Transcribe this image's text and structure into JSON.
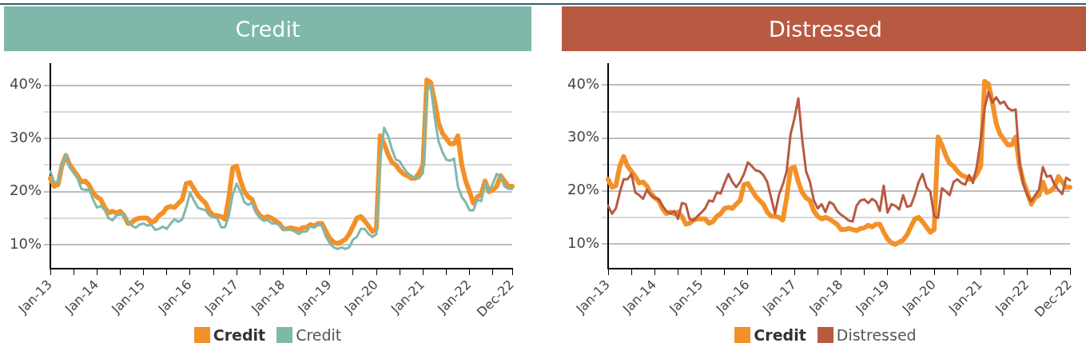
{
  "chart_data": [
    {
      "type": "line",
      "title": "Credit",
      "categories": [
        "Jan-13",
        null,
        null,
        null,
        null,
        null,
        null,
        null,
        null,
        null,
        null,
        null,
        "Jan-14",
        null,
        null,
        null,
        null,
        null,
        null,
        null,
        null,
        null,
        null,
        null,
        "Jan-15",
        null,
        null,
        null,
        null,
        null,
        null,
        null,
        null,
        null,
        null,
        null,
        "Jan-16",
        null,
        null,
        null,
        null,
        null,
        null,
        null,
        null,
        null,
        null,
        null,
        "Jan-17",
        null,
        null,
        null,
        null,
        null,
        null,
        null,
        null,
        null,
        null,
        null,
        "Jan-18",
        null,
        null,
        null,
        null,
        null,
        null,
        null,
        null,
        null,
        null,
        null,
        "Jan-19",
        null,
        null,
        null,
        null,
        null,
        null,
        null,
        null,
        null,
        null,
        null,
        "Jan-20",
        null,
        null,
        null,
        null,
        null,
        null,
        null,
        null,
        null,
        null,
        null,
        "Jan-21",
        null,
        null,
        null,
        null,
        null,
        null,
        null,
        null,
        null,
        null,
        null,
        "Jan-22",
        null,
        null,
        null,
        null,
        null,
        null,
        null,
        null,
        null,
        null,
        "Dec-22"
      ],
      "series": [
        {
          "name": "Credit",
          "color": "#f39128",
          "values": [
            22.5,
            21,
            21.3,
            25,
            26.8,
            25,
            24,
            23,
            21.8,
            22,
            21.2,
            19.8,
            19,
            18.5,
            17,
            16,
            16.3,
            16,
            16.3,
            15.5,
            14,
            14.2,
            14.8,
            15,
            15,
            15,
            14.2,
            14.5,
            15.5,
            16,
            17,
            17.2,
            17,
            17.8,
            18.5,
            21.5,
            21.7,
            20.5,
            19.3,
            18.5,
            17.8,
            16.3,
            15.5,
            15.5,
            15.3,
            14.8,
            19,
            24.5,
            24.8,
            22,
            20,
            19,
            18.5,
            16.5,
            15.5,
            15,
            15.3,
            15,
            14.5,
            14,
            13,
            13,
            13.2,
            13,
            12.8,
            13.2,
            13.3,
            13.8,
            13.5,
            14,
            14,
            12.5,
            11.2,
            10.5,
            10.2,
            10.6,
            11,
            12,
            13.5,
            15,
            15.3,
            14.5,
            13.5,
            12.5,
            13,
            30.5,
            29,
            27,
            25.5,
            25,
            24,
            23.3,
            23,
            22.5,
            22.5,
            23.5,
            25,
            41,
            40.5,
            37,
            33,
            31,
            30,
            29,
            29,
            30.5,
            25,
            22,
            20,
            17.8,
            19,
            19.5,
            22,
            20,
            20.3,
            21,
            23,
            22,
            21,
            21
          ]
        },
        {
          "name": "Credit",
          "color": "#7fb8ab",
          "values": [
            23.8,
            21.8,
            21.8,
            25,
            27,
            24.5,
            23.5,
            22.5,
            20.5,
            20.3,
            20.5,
            18.5,
            17,
            17.3,
            16.5,
            15,
            14.6,
            15.5,
            15.7,
            15.8,
            14.3,
            13.6,
            13.2,
            13.8,
            14,
            13.6,
            13.8,
            12.8,
            13,
            13.4,
            13,
            14,
            14.8,
            14.3,
            14.8,
            17,
            19.8,
            18.3,
            17,
            16.7,
            16.5,
            15.5,
            15.2,
            15,
            13.3,
            13.3,
            15.5,
            19.5,
            21.5,
            20,
            18,
            17.5,
            18,
            16,
            15,
            14.5,
            14.7,
            14,
            14,
            13.8,
            12.8,
            12.8,
            12.8,
            12.5,
            12,
            12.5,
            12.5,
            13.5,
            13.2,
            13.8,
            13.5,
            11.5,
            10.3,
            9.5,
            9.2,
            9.5,
            9.2,
            9.5,
            11,
            11.5,
            13,
            13,
            12,
            11.5,
            12,
            26,
            32,
            30.5,
            28,
            26,
            25.7,
            24.5,
            23.5,
            23,
            22.5,
            22.5,
            23.5,
            39,
            40,
            34,
            29.5,
            27.5,
            26,
            25.8,
            26.2,
            21,
            19,
            18,
            16.5,
            16.5,
            18.5,
            18.2,
            21.5,
            20,
            21.5,
            23.3,
            22.8,
            21,
            20.5,
            20.5
          ]
        }
      ],
      "ylim": [
        5.5,
        44
      ],
      "yticks": [
        {
          "value": 10,
          "label": "10%"
        },
        {
          "value": 15,
          "label": null
        },
        {
          "value": 20,
          "label": "20%"
        },
        {
          "value": 25,
          "label": null
        },
        {
          "value": 30,
          "label": "30%"
        },
        {
          "value": 35,
          "label": null
        },
        {
          "value": 40,
          "label": "40%"
        }
      ],
      "grid": "y",
      "legend": "bottom",
      "marker": "none",
      "line_style": "solid"
    },
    {
      "type": "line",
      "title": "Distressed",
      "categories": [
        "Jan-13",
        null,
        null,
        null,
        null,
        null,
        null,
        null,
        null,
        null,
        null,
        null,
        "Jan-14",
        null,
        null,
        null,
        null,
        null,
        null,
        null,
        null,
        null,
        null,
        null,
        "Jan-15",
        null,
        null,
        null,
        null,
        null,
        null,
        null,
        null,
        null,
        null,
        null,
        "Jan-16",
        null,
        null,
        null,
        null,
        null,
        null,
        null,
        null,
        null,
        null,
        null,
        "Jan-17",
        null,
        null,
        null,
        null,
        null,
        null,
        null,
        null,
        null,
        null,
        null,
        "Jan-18",
        null,
        null,
        null,
        null,
        null,
        null,
        null,
        null,
        null,
        null,
        null,
        "Jan-19",
        null,
        null,
        null,
        null,
        null,
        null,
        null,
        null,
        null,
        null,
        null,
        "Jan-20",
        null,
        null,
        null,
        null,
        null,
        null,
        null,
        null,
        null,
        null,
        null,
        "Jan-21",
        null,
        null,
        null,
        null,
        null,
        null,
        null,
        null,
        null,
        null,
        null,
        "Jan-22",
        null,
        null,
        null,
        null,
        null,
        null,
        null,
        null,
        null,
        null,
        "Dec-22"
      ],
      "series": [
        {
          "name": "Credit",
          "color": "#f39128",
          "values": [
            22.2,
            20.7,
            21,
            24.7,
            26.5,
            24.7,
            23.7,
            22.7,
            21.5,
            21.7,
            20.9,
            19.5,
            18.7,
            18.2,
            16.7,
            15.7,
            16,
            15.7,
            16,
            15.2,
            13.7,
            13.9,
            14.5,
            14.7,
            14.7,
            14.7,
            13.9,
            14.2,
            15.2,
            15.7,
            16.7,
            16.9,
            16.7,
            17.5,
            18.2,
            21.2,
            21.4,
            20.2,
            19,
            18.2,
            17.5,
            16,
            15.2,
            15.2,
            15,
            14.5,
            18.7,
            24.2,
            24.5,
            21.7,
            19.7,
            18.7,
            18.2,
            16.2,
            15.2,
            14.7,
            15,
            14.7,
            14.2,
            13.7,
            12.7,
            12.7,
            12.9,
            12.7,
            12.5,
            12.9,
            13,
            13.5,
            13.2,
            13.7,
            13.7,
            12.2,
            10.9,
            10.2,
            9.9,
            10.3,
            10.7,
            11.7,
            13.2,
            14.7,
            15,
            14.2,
            13.2,
            12.2,
            12.7,
            30.2,
            28.7,
            26.7,
            25.2,
            24.7,
            23.7,
            23,
            22.7,
            22.2,
            22.2,
            23.2,
            24.7,
            40.7,
            40.2,
            36.7,
            32.7,
            30.7,
            29.7,
            28.7,
            28.7,
            30.2,
            24.7,
            21.7,
            19.7,
            17.5,
            18.7,
            19.2,
            21.7,
            19.7,
            20,
            20.7,
            22.7,
            21.7,
            20.7,
            20.7
          ]
        },
        {
          "name": "Distressed",
          "color": "#b85a42",
          "values": [
            17.2,
            15.7,
            16.7,
            19.7,
            22.2,
            22.2,
            23.2,
            19.7,
            19.2,
            18.5,
            20.2,
            19.2,
            18.7,
            18.4,
            17.2,
            16.2,
            15.7,
            16.2,
            14.7,
            17.7,
            17.5,
            14.7,
            14.4,
            15.2,
            15.9,
            16.7,
            18.2,
            18,
            19.7,
            19.5,
            21.5,
            23.2,
            21.7,
            20.7,
            21.7,
            23.2,
            25.4,
            24.7,
            23.9,
            23.7,
            23,
            21.7,
            18.7,
            15.7,
            19.2,
            21.2,
            23.7,
            30.7,
            33.7,
            37.5,
            29.7,
            23.7,
            21.7,
            18.2,
            16.7,
            17.5,
            16,
            17.9,
            17.5,
            16.2,
            15.5,
            15,
            14.4,
            14.2,
            17.2,
            18.2,
            18.4,
            17.7,
            18.5,
            18,
            16.2,
            21,
            15.9,
            17.5,
            17.2,
            16.5,
            19.2,
            17,
            17.2,
            19.2,
            21.7,
            23.2,
            20.7,
            19.9,
            15.2,
            14.9,
            20.5,
            19.9,
            19.2,
            21.7,
            22.2,
            21.5,
            21.2,
            23,
            21.5,
            24.7,
            29.7,
            35.7,
            38.7,
            36.7,
            37.7,
            36.5,
            36.9,
            35.7,
            35.2,
            35.4,
            25.2,
            21.2,
            19.2,
            18,
            19.2,
            20.2,
            24.5,
            22.7,
            22.9,
            21.2,
            20.2,
            19.4,
            22.5,
            22
          ]
        }
      ],
      "ylim": [
        5.3,
        44
      ],
      "yticks": [
        {
          "value": 10,
          "label": "10%"
        },
        {
          "value": 15,
          "label": null
        },
        {
          "value": 20,
          "label": "20%"
        },
        {
          "value": 25,
          "label": null
        },
        {
          "value": 30,
          "label": "30%"
        },
        {
          "value": 35,
          "label": null
        },
        {
          "value": 40,
          "label": "40%"
        }
      ],
      "grid": "y",
      "legend": "bottom",
      "marker": "none",
      "line_style": "solid"
    }
  ]
}
